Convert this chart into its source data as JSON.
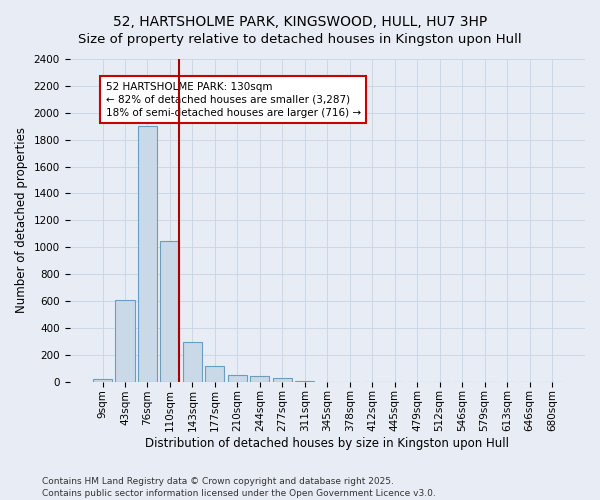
{
  "title": "52, HARTSHOLME PARK, KINGSWOOD, HULL, HU7 3HP",
  "subtitle": "Size of property relative to detached houses in Kingston upon Hull",
  "xlabel": "Distribution of detached houses by size in Kingston upon Hull",
  "ylabel": "Number of detached properties",
  "bar_labels": [
    "9sqm",
    "43sqm",
    "76sqm",
    "110sqm",
    "143sqm",
    "177sqm",
    "210sqm",
    "244sqm",
    "277sqm",
    "311sqm",
    "345sqm",
    "378sqm",
    "412sqm",
    "445sqm",
    "479sqm",
    "512sqm",
    "546sqm",
    "579sqm",
    "613sqm",
    "646sqm",
    "680sqm"
  ],
  "bar_values": [
    20,
    605,
    1905,
    1045,
    295,
    115,
    50,
    40,
    28,
    5,
    0,
    0,
    0,
    0,
    0,
    0,
    0,
    0,
    0,
    0,
    0
  ],
  "bar_color": "#c9d9e8",
  "bar_edge_color": "#6a9ec0",
  "ylim": [
    0,
    2400
  ],
  "yticks": [
    0,
    200,
    400,
    600,
    800,
    1000,
    1200,
    1400,
    1600,
    1800,
    2000,
    2200,
    2400
  ],
  "grid_color": "#c8d4e4",
  "background_color": "#e8edf5",
  "vline_x": 3.425,
  "vline_color": "#aa0000",
  "annotation_text": "52 HARTSHOLME PARK: 130sqm\n← 82% of detached houses are smaller (3,287)\n18% of semi-detached houses are larger (716) →",
  "annotation_box_color": "white",
  "annotation_box_edgecolor": "#cc0000",
  "footer_text": "Contains HM Land Registry data © Crown copyright and database right 2025.\nContains public sector information licensed under the Open Government Licence v3.0.",
  "title_fontsize": 10,
  "xlabel_fontsize": 8.5,
  "ylabel_fontsize": 8.5,
  "tick_fontsize": 7.5,
  "annotation_fontsize": 7.5,
  "footer_fontsize": 6.5
}
